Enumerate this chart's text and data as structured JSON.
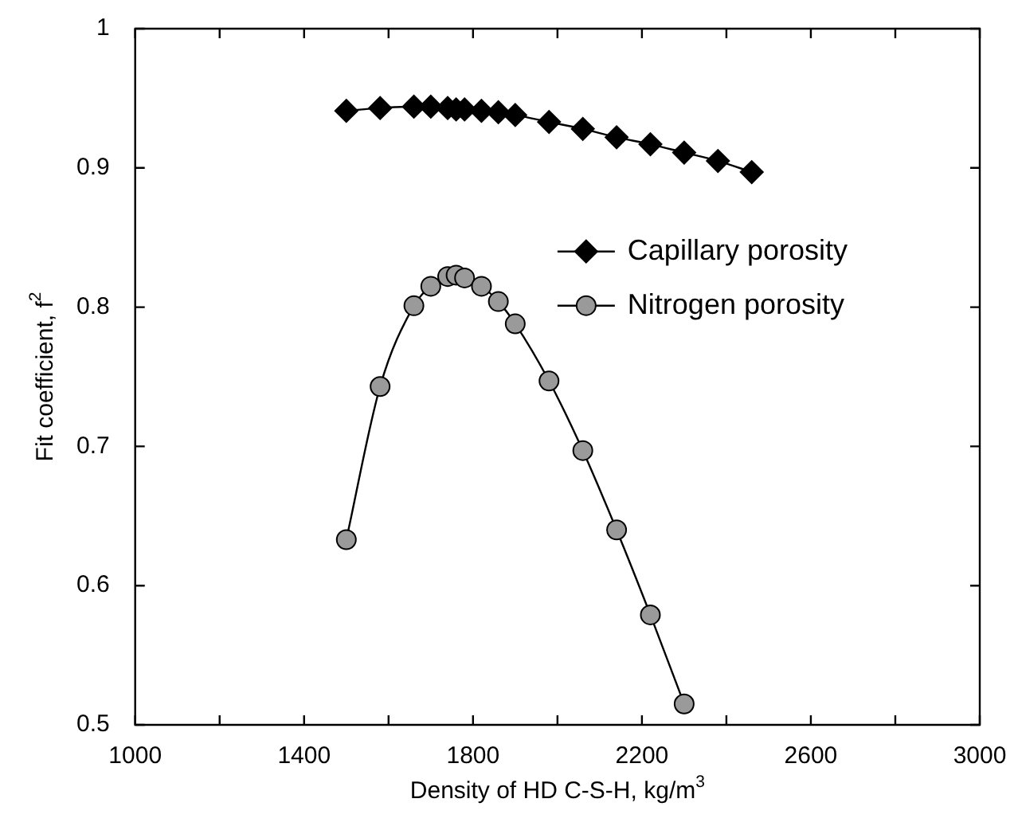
{
  "chart_data": {
    "type": "line",
    "xlabel": "Density of HD C-S-H, kg/m$^{3}$",
    "ylabel": "Fit coefficient, f$^{2}$",
    "xlim": [
      1000,
      3000
    ],
    "xticks": [
      1000,
      {
        "value": 1200,
        "label": null
      },
      1400,
      {
        "value": 1600,
        "label": null
      },
      1800,
      {
        "value": 2000,
        "label": null
      },
      2200,
      {
        "value": 2400,
        "label": null
      },
      2600,
      {
        "value": 2800,
        "label": null
      },
      3000
    ],
    "ylim": [
      0.5,
      1
    ],
    "yticks": [
      0.5,
      0.6,
      0.7,
      0.8,
      0.9,
      1
    ],
    "grid": false,
    "legend": "right",
    "line_style": "solid",
    "series": [
      {
        "name": "Capillary porosity",
        "color": "#000000",
        "marker": "diamond",
        "x": [
          1500,
          1580,
          1660,
          1700,
          1740,
          1760,
          1780,
          1820,
          1860,
          1900,
          1980,
          2060,
          2140,
          2220,
          2300,
          2380,
          2460
        ],
        "values": [
          0.941,
          0.943,
          0.944,
          0.944,
          0.943,
          0.942,
          0.942,
          0.941,
          0.94,
          0.938,
          0.933,
          0.928,
          0.922,
          0.917,
          0.911,
          0.905,
          0.897
        ]
      },
      {
        "name": "Nitrogen porosity",
        "color": "#9a9a9a",
        "marker": "circle",
        "x": [
          1500,
          1580,
          1660,
          1700,
          1740,
          1760,
          1780,
          1820,
          1860,
          1900,
          1980,
          2060,
          2140,
          2220,
          2300
        ],
        "values": [
          0.633,
          0.743,
          0.801,
          0.815,
          0.822,
          0.823,
          0.821,
          0.815,
          0.804,
          0.788,
          0.747,
          0.697,
          0.64,
          0.579,
          0.515
        ]
      }
    ]
  }
}
